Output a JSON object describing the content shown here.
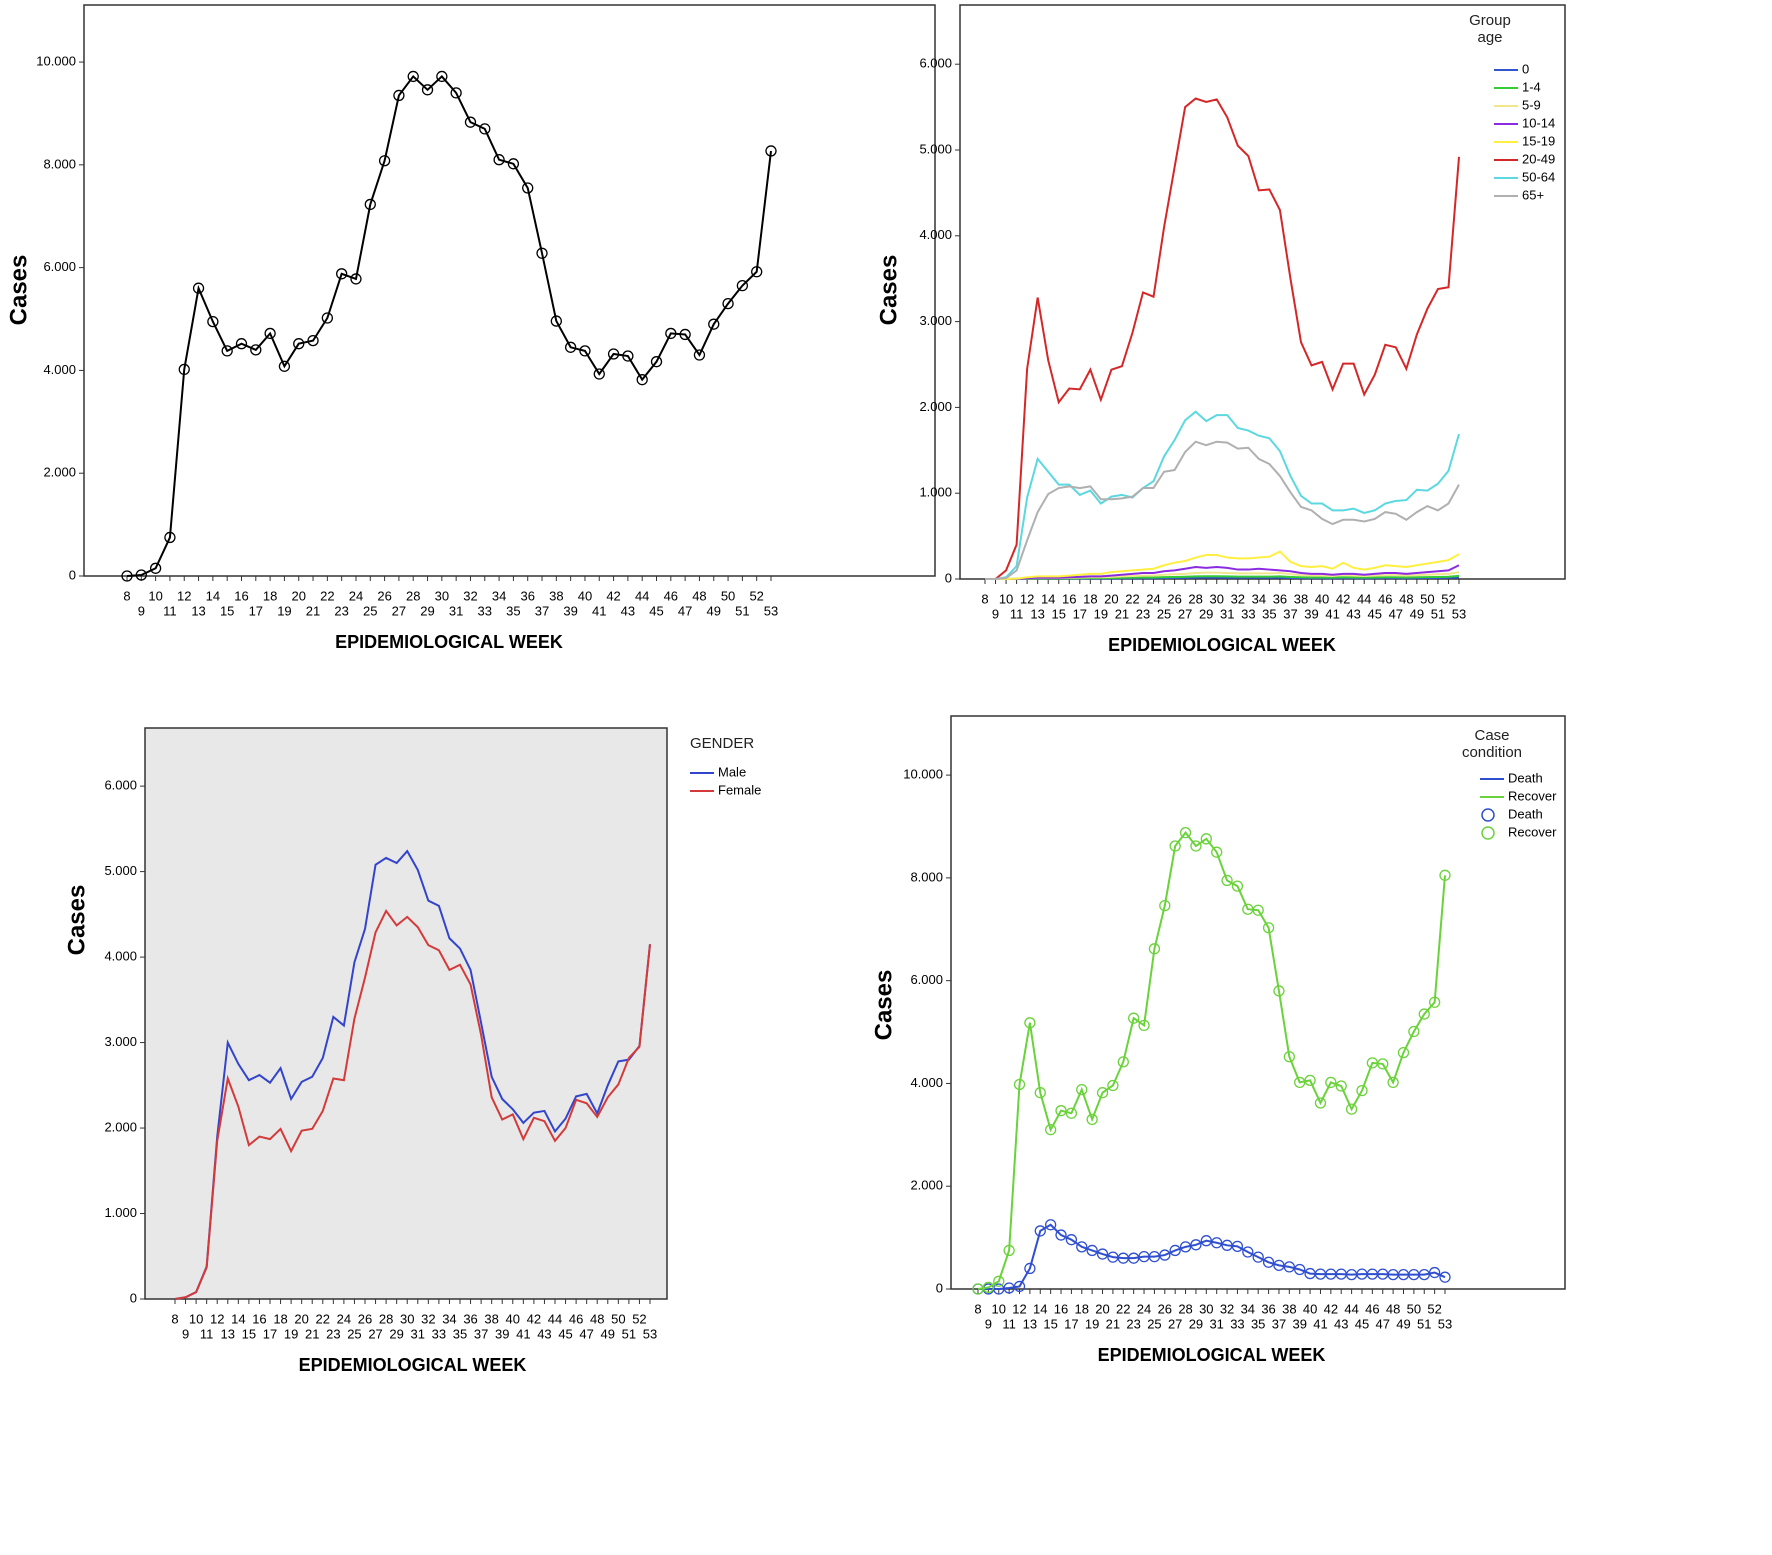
{
  "chart_data": [
    {
      "type": "line",
      "y_label": "Cases",
      "x_label": "EPIDEMIOLOGICAL WEEK",
      "markers": true,
      "categories": [
        "8",
        "9",
        "10",
        "11",
        "12",
        "13",
        "14",
        "15",
        "16",
        "17",
        "18",
        "19",
        "20",
        "21",
        "22",
        "23",
        "24",
        "25",
        "26",
        "27",
        "28",
        "29",
        "30",
        "31",
        "32",
        "33",
        "34",
        "35",
        "36",
        "37",
        "38",
        "39",
        "40",
        "41",
        "42",
        "43",
        "44",
        "45",
        "46",
        "47",
        "48",
        "49",
        "50",
        "51",
        "52",
        "53"
      ],
      "ylim": [
        0,
        11110
      ],
      "yticks": [
        0,
        {
          "value": 2000,
          "label": "2.000"
        },
        {
          "value": 4000,
          "label": "4.000"
        },
        {
          "value": 6000,
          "label": "6.000"
        },
        {
          "value": 8000,
          "label": "8.000"
        },
        {
          "value": 10000,
          "label": "10.000"
        }
      ],
      "series": [
        {
          "color": "#000000",
          "values": [
            0,
            20,
            150,
            750,
            4020,
            5600,
            4950,
            4380,
            4520,
            4400,
            4720,
            4080,
            4520,
            4580,
            5020,
            5880,
            5780,
            7230,
            8080,
            9350,
            9720,
            9460,
            9720,
            9400,
            8830,
            8700,
            8100,
            8020,
            7550,
            6280,
            4960,
            4450,
            4380,
            3930,
            4320,
            4280,
            3820,
            4170,
            4720,
            4700,
            4300,
            4900,
            5300,
            5650,
            5920,
            8270
          ]
        }
      ]
    },
    {
      "type": "line",
      "y_label": "Cases",
      "x_label": "EPIDEMIOLOGICAL WEEK",
      "markers": false,
      "legend_title": "Group age",
      "categories": [
        "8",
        "9",
        "10",
        "11",
        "12",
        "13",
        "14",
        "15",
        "16",
        "17",
        "18",
        "19",
        "20",
        "21",
        "22",
        "23",
        "24",
        "25",
        "26",
        "27",
        "28",
        "29",
        "30",
        "31",
        "32",
        "33",
        "34",
        "35",
        "36",
        "37",
        "38",
        "39",
        "40",
        "41",
        "42",
        "43",
        "44",
        "45",
        "46",
        "47",
        "48",
        "49",
        "50",
        "51",
        "52",
        "53"
      ],
      "ylim": [
        0,
        6690
      ],
      "yticks": [
        0,
        {
          "value": 1000,
          "label": "1.000"
        },
        {
          "value": 2000,
          "label": "2.000"
        },
        {
          "value": 3000,
          "label": "3.000"
        },
        {
          "value": 4000,
          "label": "4.000"
        },
        {
          "value": 5000,
          "label": "5.000"
        },
        {
          "value": 6000,
          "label": "6.000"
        }
      ],
      "series": [
        {
          "name": "0",
          "color": "#3355cc",
          "values": [
            0,
            0,
            0,
            1,
            2,
            3,
            3,
            3,
            4,
            4,
            5,
            5,
            6,
            7,
            8,
            9,
            9,
            11,
            12,
            13,
            15,
            16,
            16,
            15,
            14,
            14,
            14,
            14,
            15,
            12,
            10,
            9,
            9,
            8,
            10,
            9,
            8,
            9,
            10,
            10,
            9,
            10,
            11,
            12,
            13,
            18
          ]
        },
        {
          "name": "1-4",
          "color": "#33cc33",
          "values": [
            0,
            0,
            0,
            1,
            4,
            6,
            6,
            6,
            8,
            9,
            10,
            10,
            12,
            14,
            16,
            18,
            18,
            22,
            24,
            26,
            30,
            32,
            32,
            30,
            28,
            28,
            28,
            28,
            30,
            24,
            20,
            18,
            18,
            16,
            20,
            18,
            16,
            18,
            20,
            20,
            18,
            20,
            22,
            24,
            26,
            36
          ]
        },
        {
          "name": "5-9",
          "color": "#f0e68c",
          "values": [
            0,
            0,
            0,
            2,
            8,
            12,
            12,
            12,
            15,
            18,
            20,
            20,
            25,
            30,
            35,
            40,
            40,
            50,
            55,
            60,
            70,
            75,
            75,
            70,
            65,
            65,
            65,
            65,
            70,
            55,
            45,
            40,
            40,
            35,
            45,
            40,
            35,
            40,
            45,
            45,
            40,
            45,
            50,
            55,
            60,
            80
          ]
        },
        {
          "name": "10-14",
          "color": "#8a2be2",
          "values": [
            0,
            0,
            0,
            2,
            10,
            15,
            15,
            15,
            20,
            25,
            30,
            30,
            40,
            50,
            60,
            70,
            70,
            90,
            100,
            120,
            140,
            130,
            140,
            130,
            110,
            110,
            120,
            110,
            100,
            90,
            70,
            60,
            60,
            50,
            60,
            60,
            50,
            60,
            70,
            70,
            60,
            70,
            80,
            90,
            100,
            160
          ]
        },
        {
          "name": "15-19",
          "color": "#ffef40",
          "values": [
            0,
            0,
            0,
            5,
            20,
            30,
            30,
            30,
            40,
            50,
            60,
            60,
            80,
            90,
            100,
            110,
            120,
            160,
            190,
            210,
            250,
            280,
            280,
            250,
            240,
            240,
            250,
            260,
            320,
            200,
            150,
            140,
            150,
            120,
            190,
            130,
            110,
            130,
            160,
            150,
            140,
            160,
            180,
            200,
            220,
            290
          ]
        },
        {
          "name": "20-49",
          "color": "#d62728",
          "values": [
            0,
            0,
            100,
            400,
            2450,
            3280,
            2550,
            2060,
            2220,
            2210,
            2440,
            2090,
            2440,
            2480,
            2870,
            3340,
            3290,
            4100,
            4800,
            5500,
            5600,
            5560,
            5590,
            5380,
            5050,
            4930,
            4530,
            4540,
            4300,
            3500,
            2760,
            2490,
            2530,
            2210,
            2510,
            2510,
            2150,
            2380,
            2730,
            2700,
            2450,
            2850,
            3150,
            3380,
            3400,
            4920
          ]
        },
        {
          "name": "50-64",
          "color": "#5bd8e0",
          "values": [
            0,
            0,
            20,
            150,
            950,
            1400,
            1250,
            1100,
            1100,
            980,
            1030,
            880,
            960,
            980,
            950,
            1060,
            1140,
            1430,
            1620,
            1850,
            1950,
            1840,
            1910,
            1910,
            1760,
            1730,
            1670,
            1640,
            1490,
            1200,
            970,
            880,
            880,
            800,
            800,
            820,
            770,
            800,
            880,
            910,
            920,
            1040,
            1030,
            1110,
            1260,
            1690
          ]
        },
        {
          "name": "65+",
          "color": "#b0b0b0",
          "values": [
            0,
            0,
            10,
            100,
            450,
            780,
            990,
            1060,
            1080,
            1060,
            1080,
            930,
            930,
            940,
            960,
            1060,
            1060,
            1250,
            1270,
            1480,
            1600,
            1560,
            1600,
            1590,
            1520,
            1530,
            1400,
            1340,
            1200,
            1010,
            840,
            800,
            700,
            640,
            690,
            690,
            670,
            700,
            780,
            760,
            690,
            780,
            850,
            800,
            880,
            1100
          ]
        }
      ]
    },
    {
      "type": "line",
      "y_label": "Cases",
      "x_label": "EPIDEMIOLOGICAL WEEK",
      "markers": false,
      "legend_title": "GENDER",
      "plot_background": "#e8e8e8",
      "categories": [
        "8",
        "9",
        "10",
        "11",
        "12",
        "13",
        "14",
        "15",
        "16",
        "17",
        "18",
        "19",
        "20",
        "21",
        "22",
        "23",
        "24",
        "25",
        "26",
        "27",
        "28",
        "29",
        "30",
        "31",
        "32",
        "33",
        "34",
        "35",
        "36",
        "37",
        "38",
        "39",
        "40",
        "41",
        "42",
        "43",
        "44",
        "45",
        "46",
        "47",
        "48",
        "49",
        "50",
        "51",
        "52",
        "53"
      ],
      "ylim": [
        0,
        6680
      ],
      "yticks": [
        0,
        {
          "value": 1000,
          "label": "1.000"
        },
        {
          "value": 2000,
          "label": "2.000"
        },
        {
          "value": 3000,
          "label": "3.000"
        },
        {
          "value": 4000,
          "label": "4.000"
        },
        {
          "value": 5000,
          "label": "5.000"
        },
        {
          "value": 6000,
          "label": "6.000"
        }
      ],
      "series": [
        {
          "name": "Male",
          "color": "#3344cc",
          "values": [
            0,
            20,
            80,
            380,
            1900,
            3000,
            2750,
            2560,
            2620,
            2530,
            2700,
            2340,
            2540,
            2600,
            2820,
            3300,
            3200,
            3940,
            4330,
            5080,
            5160,
            5100,
            5240,
            5020,
            4660,
            4600,
            4220,
            4100,
            3850,
            3230,
            2600,
            2340,
            2220,
            2060,
            2180,
            2200,
            1960,
            2110,
            2370,
            2400,
            2170,
            2500,
            2780,
            2800,
            2960,
            4150
          ]
        },
        {
          "name": "Female",
          "color": "#d43a3a",
          "values": [
            0,
            20,
            80,
            370,
            1850,
            2580,
            2250,
            1800,
            1900,
            1870,
            1990,
            1730,
            1970,
            1990,
            2200,
            2580,
            2560,
            3280,
            3760,
            4290,
            4540,
            4370,
            4470,
            4350,
            4140,
            4080,
            3850,
            3910,
            3680,
            3090,
            2360,
            2100,
            2160,
            1870,
            2120,
            2080,
            1850,
            2000,
            2330,
            2290,
            2130,
            2360,
            2510,
            2820,
            2950,
            4150
          ]
        }
      ]
    },
    {
      "type": "line",
      "y_label": "Cases",
      "x_label": "EPIDEMIOLOGICAL WEEK",
      "markers": true,
      "legend_title": "Case condition",
      "categories": [
        "8",
        "9",
        "10",
        "11",
        "12",
        "13",
        "14",
        "15",
        "16",
        "17",
        "18",
        "19",
        "20",
        "21",
        "22",
        "23",
        "24",
        "25",
        "26",
        "27",
        "28",
        "29",
        "30",
        "31",
        "32",
        "33",
        "34",
        "35",
        "36",
        "37",
        "38",
        "39",
        "40",
        "41",
        "42",
        "43",
        "44",
        "45",
        "46",
        "47",
        "48",
        "49",
        "50",
        "51",
        "52",
        "53"
      ],
      "ylim": [
        0,
        11150
      ],
      "yticks": [
        0,
        {
          "value": 2000,
          "label": "2.000"
        },
        {
          "value": 4000,
          "label": "4.000"
        },
        {
          "value": 6000,
          "label": "6.000"
        },
        {
          "value": 8000,
          "label": "8.000"
        },
        {
          "value": 10000,
          "label": "10.000"
        }
      ],
      "series": [
        {
          "name": "Death",
          "color": "#2f4fd0",
          "values": [
            0,
            0,
            0,
            20,
            50,
            400,
            1130,
            1250,
            1050,
            960,
            820,
            750,
            680,
            620,
            600,
            600,
            630,
            630,
            660,
            750,
            820,
            860,
            940,
            900,
            850,
            830,
            720,
            620,
            520,
            460,
            430,
            380,
            300,
            290,
            290,
            290,
            280,
            290,
            290,
            290,
            280,
            280,
            280,
            280,
            320,
            230
          ]
        },
        {
          "name": "Recover",
          "color": "#6ad23a",
          "values": [
            0,
            30,
            150,
            750,
            3980,
            5180,
            3820,
            3100,
            3470,
            3420,
            3880,
            3300,
            3820,
            3960,
            4420,
            5270,
            5130,
            6620,
            7460,
            8620,
            8880,
            8620,
            8760,
            8500,
            7950,
            7840,
            7390,
            7370,
            7030,
            5800,
            4520,
            4020,
            4060,
            3620,
            4020,
            3950,
            3500,
            3860,
            4400,
            4380,
            4020,
            4600,
            5010,
            5350,
            5580,
            8050
          ]
        }
      ]
    }
  ]
}
